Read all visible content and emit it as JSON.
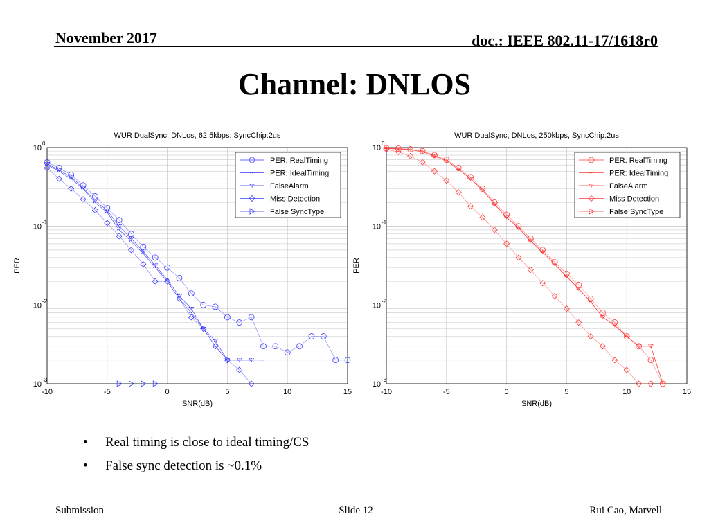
{
  "header": {
    "date": "November 2017",
    "doc": "doc.: IEEE 802.11-17/1618r0"
  },
  "title": "Channel: DNLOS",
  "bullets": [
    "Real timing is close to ideal timing/CS",
    "False sync detection is ~0.1%"
  ],
  "footer": {
    "left": "Submission",
    "center": "Slide 12",
    "right": "Rui Cao, Marvell"
  },
  "chart_data": [
    {
      "type": "line",
      "title": "WUR DualSync, DNLos, 62.5kbps, SyncChip:2us",
      "xlabel": "SNR(dB)",
      "ylabel": "PER",
      "xlim": [
        -10,
        15
      ],
      "ylim": [
        0.001,
        1
      ],
      "yscale": "log",
      "xticks": [
        "-10",
        "-5",
        "0",
        "5",
        "10",
        "15"
      ],
      "ytick_base": "10",
      "ytick_exps": [
        "0",
        "-1",
        "-2",
        "-3"
      ],
      "grid": true,
      "legend": "top-right",
      "color": "#3a3aff",
      "series": [
        {
          "name": "PER: RealTiming",
          "marker": "circle",
          "x": [
            -10,
            -9,
            -8,
            -7,
            -6,
            -5,
            -4,
            -3,
            -2,
            -1,
            0,
            1,
            2,
            3,
            4,
            5,
            6,
            7,
            8,
            9,
            10,
            11,
            12,
            13,
            14,
            15
          ],
          "y": [
            0.65,
            0.55,
            0.45,
            0.33,
            0.24,
            0.17,
            0.12,
            0.08,
            0.055,
            0.04,
            0.03,
            0.022,
            0.014,
            0.01,
            0.0095,
            0.007,
            0.006,
            0.007,
            0.003,
            0.003,
            0.0025,
            0.003,
            0.004,
            0.004,
            0.002,
            0.002
          ]
        },
        {
          "name": "PER: IdealTiming",
          "marker": "dash",
          "x": [
            -10,
            -9,
            -8,
            -7,
            -6,
            -5,
            -4,
            -3,
            -2,
            -1,
            0,
            1,
            2,
            3,
            4,
            5,
            6,
            7,
            8
          ],
          "y": [
            0.6,
            0.5,
            0.4,
            0.3,
            0.2,
            0.15,
            0.09,
            0.065,
            0.045,
            0.03,
            0.02,
            0.012,
            0.008,
            0.005,
            0.003,
            0.002,
            0.002,
            0.002,
            0.002
          ]
        },
        {
          "name": "FalseAlarm",
          "marker": "triangle-down",
          "x": [
            -10,
            -9,
            -8,
            -7,
            -6,
            -5,
            -4,
            -3,
            -2,
            -1,
            0,
            1,
            2,
            3,
            4,
            5,
            6,
            7
          ],
          "y": [
            0.62,
            0.52,
            0.42,
            0.31,
            0.21,
            0.16,
            0.1,
            0.07,
            0.048,
            0.032,
            0.021,
            0.013,
            0.009,
            0.005,
            0.0035,
            0.002,
            0.002,
            0.002
          ]
        },
        {
          "name": "Miss Detection",
          "marker": "diamond",
          "x": [
            -10,
            -9,
            -8,
            -7,
            -6,
            -5,
            -4,
            -3,
            -2,
            -1,
            0,
            1,
            2,
            3,
            4,
            5,
            6,
            7
          ],
          "y": [
            0.55,
            0.4,
            0.3,
            0.22,
            0.16,
            0.11,
            0.075,
            0.05,
            0.033,
            0.02,
            0.02,
            0.012,
            0.007,
            0.005,
            0.003,
            0.002,
            0.0015,
            0.001
          ]
        },
        {
          "name": "False SyncType",
          "marker": "triangle-right",
          "x": [
            -4,
            -3,
            -2,
            -1
          ],
          "y": [
            0.001,
            0.001,
            0.001,
            0.001
          ]
        }
      ]
    },
    {
      "type": "line",
      "title": "WUR DualSync, DNLos, 250kbps, SyncChip:2us",
      "xlabel": "SNR(dB)",
      "ylabel": "PER",
      "xlim": [
        -10,
        15
      ],
      "ylim": [
        0.001,
        1
      ],
      "yscale": "log",
      "xticks": [
        "-10",
        "-5",
        "0",
        "5",
        "10",
        "15"
      ],
      "ytick_base": "10",
      "ytick_exps": [
        "0",
        "-1",
        "-2",
        "-3"
      ],
      "grid": true,
      "legend": "top-right",
      "color": "#ff3a3a",
      "series": [
        {
          "name": "PER: RealTiming",
          "marker": "circle",
          "x": [
            -10,
            -9,
            -8,
            -7,
            -6,
            -5,
            -4,
            -3,
            -2,
            -1,
            0,
            1,
            2,
            3,
            4,
            5,
            6,
            7,
            8,
            9,
            10,
            11,
            12,
            13
          ],
          "y": [
            0.98,
            0.97,
            0.95,
            0.9,
            0.8,
            0.7,
            0.55,
            0.42,
            0.3,
            0.2,
            0.14,
            0.1,
            0.07,
            0.05,
            0.035,
            0.025,
            0.018,
            0.012,
            0.008,
            0.006,
            0.004,
            0.003,
            0.002,
            0.001
          ]
        },
        {
          "name": "PER: IdealTiming",
          "marker": "dash",
          "x": [
            -10,
            -9,
            -8,
            -7,
            -6,
            -5,
            -4,
            -3,
            -2,
            -1,
            0,
            1,
            2,
            3,
            4,
            5,
            6,
            7,
            8,
            9,
            10,
            11,
            12,
            13
          ],
          "y": [
            0.97,
            0.96,
            0.94,
            0.88,
            0.78,
            0.68,
            0.53,
            0.4,
            0.29,
            0.19,
            0.13,
            0.095,
            0.065,
            0.047,
            0.033,
            0.023,
            0.016,
            0.011,
            0.007,
            0.0055,
            0.004,
            0.003,
            0.003,
            0.001
          ]
        },
        {
          "name": "FalseAlarm",
          "marker": "triangle-down",
          "x": [
            -10,
            -9,
            -8,
            -7,
            -6,
            -5,
            -4,
            -3,
            -2,
            -1,
            0,
            1,
            2,
            3,
            4,
            5,
            6,
            7,
            8,
            9,
            10,
            11,
            12,
            13
          ],
          "y": [
            0.97,
            0.96,
            0.94,
            0.88,
            0.78,
            0.68,
            0.53,
            0.4,
            0.29,
            0.19,
            0.13,
            0.095,
            0.065,
            0.047,
            0.033,
            0.023,
            0.016,
            0.011,
            0.007,
            0.0055,
            0.004,
            0.003,
            0.003,
            0.001
          ]
        },
        {
          "name": "Miss Detection",
          "marker": "diamond",
          "x": [
            -10,
            -9,
            -8,
            -7,
            -6,
            -5,
            -4,
            -3,
            -2,
            -1,
            0,
            1,
            2,
            3,
            4,
            5,
            6,
            7,
            8,
            9,
            10,
            11,
            12
          ],
          "y": [
            0.95,
            0.88,
            0.78,
            0.65,
            0.5,
            0.38,
            0.27,
            0.18,
            0.13,
            0.09,
            0.06,
            0.04,
            0.028,
            0.019,
            0.013,
            0.009,
            0.006,
            0.004,
            0.003,
            0.002,
            0.0015,
            0.001,
            0.001
          ]
        },
        {
          "name": "False SyncType",
          "marker": "triangle-right",
          "x": [],
          "y": []
        }
      ]
    }
  ]
}
